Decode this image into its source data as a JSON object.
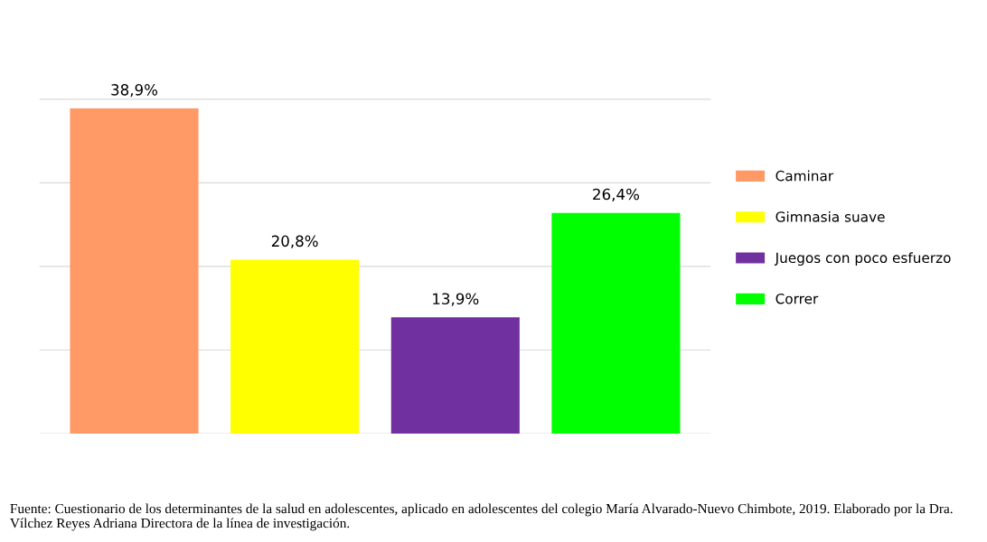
{
  "chart_data": {
    "type": "bar",
    "categories": [
      null,
      null,
      null,
      null
    ],
    "series": [
      {
        "name": "Caminar",
        "color": "#ff9966",
        "values": [
          38.9,
          null,
          null,
          null
        ],
        "value_labels": [
          "38,9%",
          null,
          null,
          null
        ]
      },
      {
        "name": "Gimnasia suave",
        "color": "#ffff00",
        "values": [
          null,
          20.8,
          null,
          null
        ],
        "value_labels": [
          null,
          "20,8%",
          null,
          null
        ]
      },
      {
        "name": "Juegos con poco esfuerzo",
        "color": "#7030a0",
        "values": [
          null,
          null,
          13.9,
          null
        ],
        "value_labels": [
          null,
          null,
          "13,9%",
          null
        ]
      },
      {
        "name": "Correr",
        "color": "#00ff00",
        "values": [
          null,
          null,
          null,
          26.4
        ],
        "value_labels": [
          null,
          null,
          null,
          "26,4%"
        ]
      }
    ],
    "stacked": true,
    "grid": "y",
    "tick_labels": false,
    "legend": "right",
    "annotations": [
      "Fuente: Cuestionario de los determinantes de la salud en adolescentes, aplicado en adolescentes del colegio María Alvarado-Nuevo Chimbote, 2019. Elaborado por la Dra. Vílchez Reyes Adriana Directora de la línea de investigación."
    ]
  }
}
